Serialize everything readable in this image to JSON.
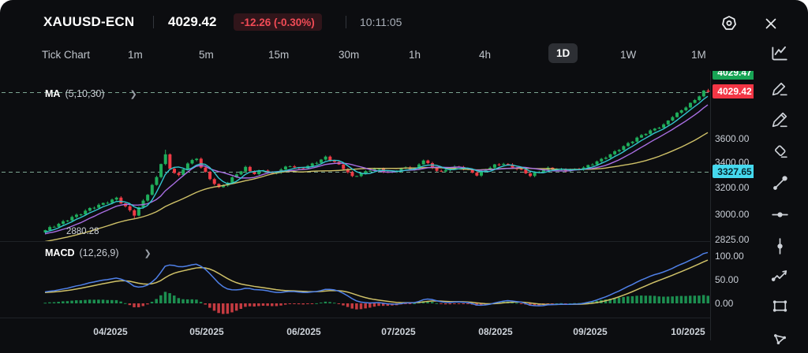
{
  "header": {
    "symbol": "XAUUSD-ECN",
    "last_price": "4029.42",
    "change": "-12.26 (-0.30%)",
    "time": "10:11:05"
  },
  "tabs": {
    "items": [
      "Tick Chart",
      "1m",
      "5m",
      "15m",
      "30m",
      "1h",
      "4h",
      "1D",
      "1W",
      "1M"
    ],
    "active": "1D"
  },
  "price_panel": {
    "ma_indicator": "MA",
    "ma_params": "(5,10,30)",
    "low_label": "2880.28",
    "axis_labels": [
      "3600.00",
      "3400.00",
      "3200.00",
      "3000.00",
      "2825.00"
    ],
    "badge_high": "4029.47",
    "badge_last": "4029.42",
    "badge_level": "3327.65"
  },
  "macd_panel": {
    "indicator": "MACD",
    "params": "(12,26,9)",
    "axis_labels": [
      "100.00",
      "50.00",
      "0.00"
    ]
  },
  "x_axis": {
    "labels": [
      "04/2025",
      "05/2025",
      "06/2025",
      "07/2025",
      "08/2025",
      "09/2025",
      "10/2025"
    ]
  },
  "toolbar": {
    "icons": [
      "line-chart",
      "draw-pen",
      "draw-pencil",
      "eraser",
      "trend-line",
      "horizontal-line",
      "vertical-line",
      "wave-arrow",
      "rectangle",
      "polygon"
    ]
  },
  "colors": {
    "up": "#1fae5b",
    "down": "#ef3b45",
    "ma5": "#33c6cf",
    "ma10": "#a96fe3",
    "ma30": "#cfc168",
    "macd_line": "#4f80e8",
    "signal_line": "#cfc168",
    "hist_up": "#1c8f50",
    "hist_down": "#c53b41",
    "dashed_level": "#7da693",
    "badge_last_bg": "#f23645",
    "badge_level_bg": "#45d9ee",
    "badge_high_bg": "#18a455"
  },
  "chart_data": {
    "type": "candlestick",
    "symbol": "XAUUSD-ECN",
    "timeframe": "1D",
    "price_scale": "log",
    "title": "XAUUSD-ECN 1D with MA(5,10,30) and MACD(12,26,9)",
    "y_ticks": [
      3600,
      3400,
      3200,
      3000,
      2825
    ],
    "x_tick_labels": [
      "04/2025",
      "05/2025",
      "06/2025",
      "07/2025",
      "08/2025",
      "09/2025",
      "10/2025"
    ],
    "last_price": 4029.42,
    "prev_close": 4041.68,
    "change": -12.26,
    "change_pct": -0.3,
    "series_low": 2880.28,
    "reference_level": 3327.65,
    "overlays": [
      {
        "name": "MA",
        "periods": [
          5,
          10,
          30
        ]
      }
    ],
    "indicator": {
      "name": "MACD",
      "periods": [
        12,
        26,
        9
      ],
      "y_ticks": [
        100,
        50,
        0
      ]
    },
    "warmup_anchors": [
      [
        -40,
        2690
      ],
      [
        -28,
        2745
      ],
      [
        -16,
        2800
      ],
      [
        -8,
        2845
      ],
      [
        -1,
        2882
      ]
    ],
    "close_anchors": [
      [
        0,
        2890
      ],
      [
        2,
        2915
      ],
      [
        4,
        2945
      ],
      [
        6,
        2985
      ],
      [
        8,
        3010
      ],
      [
        10,
        3040
      ],
      [
        12,
        3065
      ],
      [
        14,
        3095
      ],
      [
        16,
        3125
      ],
      [
        18,
        3055
      ],
      [
        20,
        2995
      ],
      [
        21,
        3045
      ],
      [
        23,
        3155
      ],
      [
        25,
        3285
      ],
      [
        26,
        3395
      ],
      [
        27,
        3460
      ],
      [
        28,
        3345
      ],
      [
        30,
        3290
      ],
      [
        32,
        3400
      ],
      [
        34,
        3435
      ],
      [
        35,
        3365
      ],
      [
        37,
        3265
      ],
      [
        39,
        3195
      ],
      [
        41,
        3245
      ],
      [
        43,
        3310
      ],
      [
        45,
        3355
      ],
      [
        47,
        3305
      ],
      [
        49,
        3340
      ],
      [
        51,
        3310
      ],
      [
        53,
        3345
      ],
      [
        55,
        3370
      ],
      [
        57,
        3345
      ],
      [
        59,
        3375
      ],
      [
        61,
        3405
      ],
      [
        63,
        3440
      ],
      [
        65,
        3400
      ],
      [
        67,
        3355
      ],
      [
        69,
        3290
      ],
      [
        71,
        3310
      ],
      [
        73,
        3335
      ],
      [
        75,
        3345
      ],
      [
        77,
        3320
      ],
      [
        79,
        3335
      ],
      [
        81,
        3355
      ],
      [
        83,
        3340
      ],
      [
        85,
        3425
      ],
      [
        87,
        3360
      ],
      [
        89,
        3320
      ],
      [
        91,
        3350
      ],
      [
        93,
        3365
      ],
      [
        95,
        3345
      ],
      [
        97,
        3300
      ],
      [
        99,
        3340
      ],
      [
        101,
        3375
      ],
      [
        103,
        3395
      ],
      [
        105,
        3365
      ],
      [
        107,
        3335
      ],
      [
        109,
        3290
      ],
      [
        111,
        3330
      ],
      [
        113,
        3355
      ],
      [
        115,
        3345
      ],
      [
        117,
        3332
      ],
      [
        119,
        3340
      ],
      [
        121,
        3362
      ],
      [
        123,
        3392
      ],
      [
        125,
        3422
      ],
      [
        127,
        3462
      ],
      [
        129,
        3512
      ],
      [
        131,
        3562
      ],
      [
        133,
        3605
      ],
      [
        135,
        3645
      ],
      [
        137,
        3685
      ],
      [
        139,
        3725
      ],
      [
        141,
        3800
      ],
      [
        143,
        3850
      ],
      [
        145,
        3915
      ],
      [
        147,
        3985
      ],
      [
        148,
        4041.68
      ],
      [
        149,
        4029.42
      ]
    ]
  }
}
